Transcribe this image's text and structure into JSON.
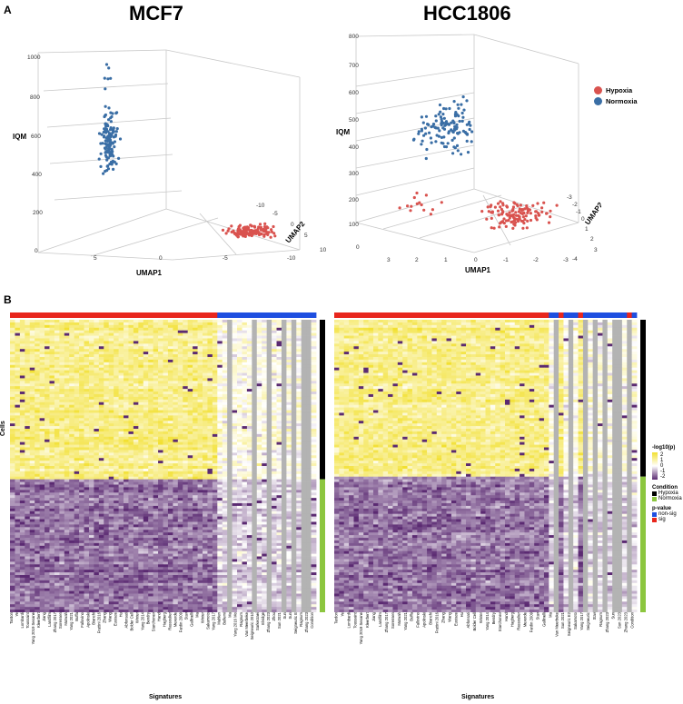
{
  "panel_a_label": "A",
  "panel_b_label": "B",
  "colors": {
    "hypoxia": "#d9534f",
    "normoxia": "#3a6ea5",
    "sig": "#e8261c",
    "non_sig": "#1e4fe0",
    "cond_hypoxia": "#000000",
    "cond_normoxia": "#8cc63f",
    "heat_high": "#f2e030",
    "heat_mid": "#ffffff",
    "heat_low": "#5b2a72",
    "na_gray": "#b3b3b3"
  },
  "scatter_left": {
    "title": "MCF7",
    "z_label": "IQM",
    "x_label": "UMAP1",
    "y_label": "UMAP2",
    "z_ticks": [
      "1000",
      "800",
      "600",
      "400",
      "200",
      "0"
    ],
    "x_ticks": [
      "5",
      "0",
      "-5",
      "-10"
    ],
    "y_ticks": [
      "-10",
      "-5",
      "0",
      "5",
      "10"
    ]
  },
  "scatter_right": {
    "title": "HCC1806",
    "z_label": "IQM",
    "x_label": "UMAP1",
    "y_label": "UMAP2",
    "z_ticks": [
      "800",
      "700",
      "600",
      "500",
      "400",
      "300",
      "200",
      "100",
      "0"
    ],
    "x_ticks": [
      "3",
      "2",
      "1",
      "0",
      "-1",
      "-2",
      "-3"
    ],
    "y_ticks": [
      "-3",
      "-2",
      "-1",
      "0",
      "1",
      "2",
      "3",
      "-4"
    ]
  },
  "legend_scatter": {
    "hypoxia": "Hypoxia",
    "normoxia": "Normoxia"
  },
  "heatmap_left": {
    "y_label": "Cells",
    "x_label": "Signatures",
    "signatures": [
      "Tardon",
      "Ye",
      "Lombardi",
      "Toussaint",
      "Yang 2019 Seoane",
      "Kleerbert",
      "Jiang",
      "Landfilm",
      "Zhang 2017",
      "Sorensen",
      "Mutwah",
      "Yang 2021",
      "Buffa",
      "Fallovino",
      "Apolinski",
      "Bianchi",
      "Frattini 2016",
      "Zhang",
      "Wang",
      "Eustace",
      "Hu",
      "Abfonsati",
      "Bolder Cell",
      "Winter",
      "Yang 2014",
      "Bendry",
      "Starchonev",
      "Hand",
      "Hagberg",
      "Rassoulier",
      "Mexerde",
      "Fardin 2009",
      "Stav",
      "Gallinelli",
      "Ma",
      "Winter",
      "Sakamoto",
      "Yang 2017",
      "Mahlen",
      "Bullemi",
      "Ma",
      "Yang 2016 Mo",
      "Ragnum",
      "Van Meerbeke",
      "Seigneuric 2010",
      "Sarkerzaei",
      "Elvidge",
      "Zhang 2023",
      "Zhou",
      "Sun 2021",
      "Sun",
      "Sun",
      "Seigneuric E",
      "Ragnum",
      "Zhang 2023",
      "Condition"
    ]
  },
  "heatmap_right": {
    "x_label": "Signatures",
    "signatures": [
      "Tardon",
      "Ye",
      "Lombardi",
      "Toussaint",
      "Yang 2019 Seoane",
      "Kleerbert",
      "Jiang",
      "Landfilm",
      "Zhang 2017",
      "Sorensen",
      "Mutwah",
      "Yang 2021",
      "Buffa",
      "Fallovino",
      "Apolinski",
      "Bianchi",
      "Frattini 2016",
      "Zhang",
      "Wang",
      "Eustace",
      "Hu",
      "Abfonsati",
      "Bolder Cell",
      "Winter",
      "Yang 2014",
      "Bendry",
      "Starchonev",
      "Hand",
      "Hagberg",
      "Rassoulier",
      "Mexerde",
      "Fardin 2009",
      "Stav",
      "Gallinelli",
      "Ma",
      "Van Meerbeke",
      "Sun 2021",
      "Seigneuric E2",
      "Sakamoto",
      "Yang 2017",
      "Seigneuric",
      "Stav",
      "Ragnum",
      "Zhang 2023",
      "Sun",
      "Sun 2023",
      "Zhang 2023",
      "Condition"
    ]
  },
  "heat_legend": {
    "title": "-log10(p)",
    "ticks": [
      "2",
      "1",
      "0",
      "-1",
      "-2"
    ],
    "condition_title": "Condition",
    "condition_items": [
      "Hypoxia",
      "Normoxia"
    ],
    "pvalue_title": "p-value",
    "pvalue_items": [
      "non-sig",
      "sig"
    ]
  }
}
